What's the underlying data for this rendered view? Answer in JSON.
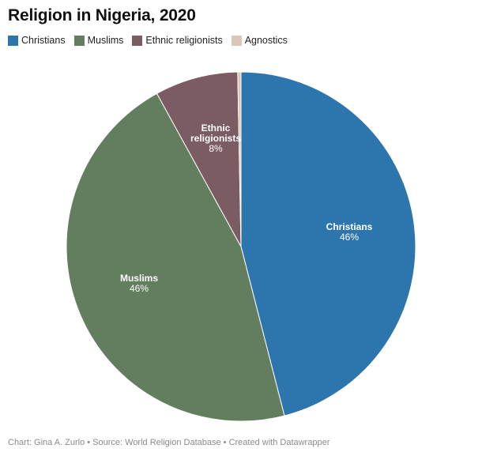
{
  "chart_data": {
    "type": "pie",
    "title": "Religion in Nigeria, 2020",
    "legend_position": "top-left",
    "slices": [
      {
        "name": "Christians",
        "value": 46,
        "label": "46%",
        "color": "#2d75ad"
      },
      {
        "name": "Muslims",
        "value": 46,
        "label": "46%",
        "color": "#627e5f"
      },
      {
        "name": "Ethnic religionists",
        "value": 7.7,
        "label": "8%",
        "color": "#7b5c62"
      },
      {
        "name": "Agnostics",
        "value": 0.3,
        "label": "",
        "color": "#dbc7b9"
      }
    ],
    "footer": "Chart: Gina A. Zurlo • Source: World Religion Database • Created with Datawrapper"
  }
}
